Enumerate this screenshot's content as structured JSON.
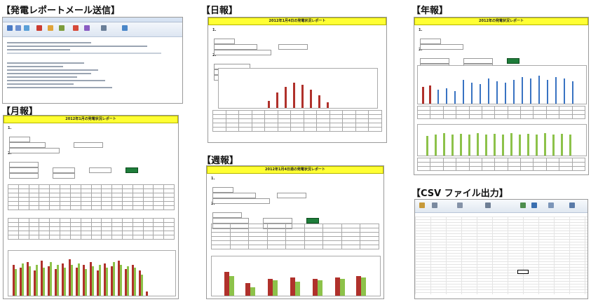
{
  "sections": {
    "email": {
      "title": "【発電レポートメール送信】"
    },
    "daily": {
      "title": "【日報】",
      "report_title": "2012年1月4日の発電状況レポート"
    },
    "yearly": {
      "title": "【年報】",
      "report_title": "2012年の発電状況レポート"
    },
    "monthly": {
      "title": "【月報】",
      "report_title": "2012年1月の発電状況レポート"
    },
    "weekly": {
      "title": "【週報】",
      "report_title": "2012年1月4日週の発電状況レポート"
    },
    "csv": {
      "title": "【CSV ファイル出力】"
    }
  },
  "colors": {
    "header_yellow": "#ffff33",
    "bar_red": "#b0312b",
    "bar_green": "#8dc24a",
    "bar_blue": "#3973c2",
    "button_green": "#1e7d3a"
  }
}
